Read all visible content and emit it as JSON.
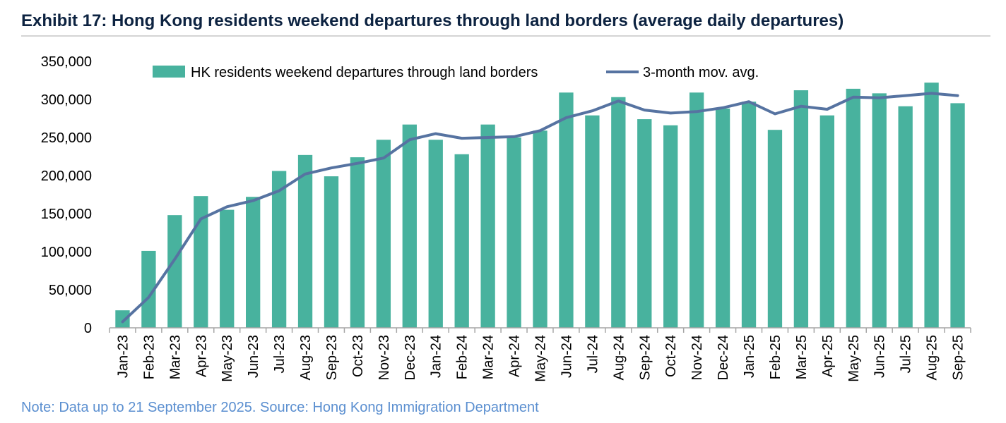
{
  "title": "Exhibit 17: Hong Kong residents weekend departures through land borders (average daily departures)",
  "note": "Note: Data up to 21 September 2025. Source: Hong Kong Immigration Department",
  "colors": {
    "bar": "#48b29e",
    "line": "#5673a1",
    "title": "#0d2341",
    "note": "#5b8fd0"
  },
  "chart_data": {
    "type": "bar",
    "categories": [
      "Jan-23",
      "Feb-23",
      "Mar-23",
      "Apr-23",
      "May-23",
      "Jun-23",
      "Jul-23",
      "Aug-23",
      "Sep-23",
      "Oct-23",
      "Nov-23",
      "Dec-23",
      "Jan-24",
      "Feb-24",
      "Mar-24",
      "Apr-24",
      "May-24",
      "Jun-24",
      "Jul-24",
      "Aug-24",
      "Sep-24",
      "Oct-24",
      "Nov-24",
      "Dec-24",
      "Jan-25",
      "Feb-25",
      "Mar-25",
      "Apr-25",
      "May-25",
      "Jun-25",
      "Jul-25",
      "Aug-25",
      "Sep-25"
    ],
    "series": [
      {
        "name": "HK residents weekend departures through land borders",
        "kind": "bar",
        "values": [
          23000,
          101000,
          148000,
          173000,
          155000,
          172000,
          206000,
          227000,
          199000,
          224000,
          247000,
          267000,
          247000,
          228000,
          267000,
          250000,
          259000,
          309000,
          279000,
          303000,
          274000,
          266000,
          309000,
          288000,
          297000,
          260000,
          312000,
          279000,
          314000,
          308000,
          291000,
          322000,
          295000
        ]
      },
      {
        "name": "3-month mov. avg.",
        "kind": "line",
        "values": [
          8000,
          40000,
          90000,
          143000,
          159000,
          167000,
          180000,
          202000,
          210000,
          216000,
          223000,
          247000,
          255000,
          249000,
          250000,
          251000,
          259000,
          276000,
          285000,
          298000,
          286000,
          282000,
          284000,
          289000,
          297000,
          281000,
          291000,
          287000,
          303000,
          302000,
          305000,
          308000,
          305000
        ]
      }
    ],
    "xlabel": "",
    "ylabel": "",
    "ylim": [
      0,
      350000
    ],
    "yticks": [
      0,
      50000,
      100000,
      150000,
      200000,
      250000,
      300000,
      350000
    ],
    "ytick_labels": [
      "0",
      "50,000",
      "100,000",
      "150,000",
      "200,000",
      "250,000",
      "300,000",
      "350,000"
    ],
    "grid": false,
    "legend": "top"
  }
}
